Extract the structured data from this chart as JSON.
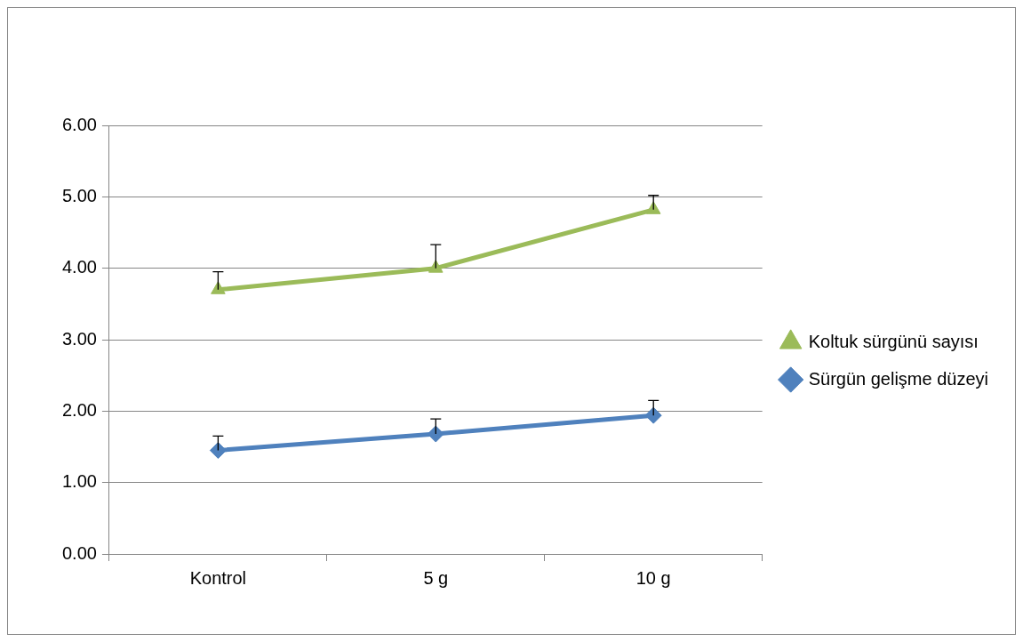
{
  "chart_data": {
    "type": "line",
    "categories": [
      "Kontrol",
      "5 g",
      "10 g"
    ],
    "series": [
      {
        "name": "Koltuk sürgünü sayısı",
        "color": "#9bbb59",
        "marker": "triangle",
        "values": [
          3.7,
          4.0,
          4.82
        ],
        "errors": [
          [
            3.7,
            3.95
          ],
          [
            4.0,
            4.33
          ],
          [
            4.82,
            5.02
          ]
        ]
      },
      {
        "name": "Sürgün gelişme düzeyi",
        "color": "#4f81bd",
        "marker": "diamond",
        "values": [
          1.45,
          1.68,
          1.94
        ],
        "errors": [
          [
            1.45,
            1.65
          ],
          [
            1.68,
            1.89
          ],
          [
            1.94,
            2.15
          ]
        ]
      }
    ],
    "ylim": [
      0,
      6
    ],
    "yticks": [
      {
        "value": 0,
        "label": "0.00"
      },
      {
        "value": 1,
        "label": "1.00"
      },
      {
        "value": 2,
        "label": "2.00"
      },
      {
        "value": 3,
        "label": "3.00"
      },
      {
        "value": 4,
        "label": "4.00"
      },
      {
        "value": 5,
        "label": "5.00"
      },
      {
        "value": 6,
        "label": "6.00"
      }
    ],
    "grid": "y",
    "legend": "right"
  }
}
